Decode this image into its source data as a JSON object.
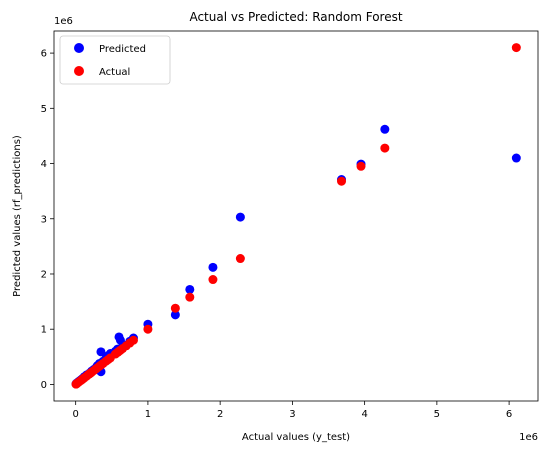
{
  "chart_data": {
    "type": "scatter",
    "title": "Actual vs Predicted: Random Forest",
    "xlabel": "Actual values (y_test)",
    "ylabel": "Predicted values (rf_predictions)",
    "x_offset_label": "1e6",
    "y_offset_label": "1e6",
    "xlim": [
      -300000,
      6400000
    ],
    "ylim": [
      -300000,
      6400000
    ],
    "x_ticks": [
      0,
      1000000,
      2000000,
      3000000,
      4000000,
      5000000,
      6000000
    ],
    "x_tick_labels": [
      "0",
      "1",
      "2",
      "3",
      "4",
      "5",
      "6"
    ],
    "y_ticks": [
      0,
      1000000,
      2000000,
      3000000,
      4000000,
      5000000,
      6000000
    ],
    "y_tick_labels": [
      "0",
      "1",
      "2",
      "3",
      "4",
      "5",
      "6"
    ],
    "grid": false,
    "legend_position": "top-left",
    "series": [
      {
        "name": "Predicted",
        "color": "#0000ff",
        "points": [
          [
            6100000,
            4100000
          ],
          [
            4280000,
            4620000
          ],
          [
            3950000,
            3990000
          ],
          [
            3680000,
            3710000
          ],
          [
            2280000,
            3030000
          ],
          [
            1900000,
            2120000
          ],
          [
            1580000,
            1720000
          ],
          [
            1380000,
            1260000
          ],
          [
            1000000,
            1090000
          ],
          [
            800000,
            840000
          ],
          [
            750000,
            780000
          ],
          [
            700000,
            710000
          ],
          [
            650000,
            690000
          ],
          [
            600000,
            860000
          ],
          [
            620000,
            800000
          ],
          [
            580000,
            640000
          ],
          [
            550000,
            600000
          ],
          [
            480000,
            560000
          ],
          [
            450000,
            520000
          ],
          [
            420000,
            470000
          ],
          [
            380000,
            420000
          ],
          [
            350000,
            590000
          ],
          [
            330000,
            380000
          ],
          [
            300000,
            340000
          ],
          [
            280000,
            300000
          ],
          [
            350000,
            230000
          ],
          [
            250000,
            270000
          ],
          [
            220000,
            240000
          ],
          [
            200000,
            210000
          ],
          [
            180000,
            190000
          ],
          [
            150000,
            170000
          ],
          [
            120000,
            140000
          ],
          [
            100000,
            110000
          ],
          [
            80000,
            90000
          ],
          [
            60000,
            70000
          ],
          [
            40000,
            50000
          ],
          [
            20000,
            30000
          ],
          [
            10000,
            15000
          ],
          [
            5000,
            8000
          ]
        ]
      },
      {
        "name": "Actual",
        "color": "#ff0000",
        "points": [
          [
            6100000,
            6100000
          ],
          [
            4280000,
            4280000
          ],
          [
            3950000,
            3950000
          ],
          [
            3680000,
            3680000
          ],
          [
            2280000,
            2280000
          ],
          [
            1900000,
            1900000
          ],
          [
            1580000,
            1580000
          ],
          [
            1380000,
            1380000
          ],
          [
            1000000,
            1000000
          ],
          [
            800000,
            800000
          ],
          [
            750000,
            750000
          ],
          [
            700000,
            700000
          ],
          [
            650000,
            650000
          ],
          [
            600000,
            600000
          ],
          [
            620000,
            620000
          ],
          [
            580000,
            580000
          ],
          [
            550000,
            550000
          ],
          [
            480000,
            480000
          ],
          [
            450000,
            450000
          ],
          [
            420000,
            420000
          ],
          [
            380000,
            380000
          ],
          [
            350000,
            350000
          ],
          [
            330000,
            330000
          ],
          [
            300000,
            300000
          ],
          [
            280000,
            280000
          ],
          [
            250000,
            250000
          ],
          [
            220000,
            220000
          ],
          [
            200000,
            200000
          ],
          [
            180000,
            180000
          ],
          [
            150000,
            150000
          ],
          [
            120000,
            120000
          ],
          [
            100000,
            100000
          ],
          [
            80000,
            80000
          ],
          [
            60000,
            60000
          ],
          [
            40000,
            40000
          ],
          [
            20000,
            20000
          ],
          [
            10000,
            10000
          ],
          [
            5000,
            5000
          ]
        ]
      }
    ]
  }
}
